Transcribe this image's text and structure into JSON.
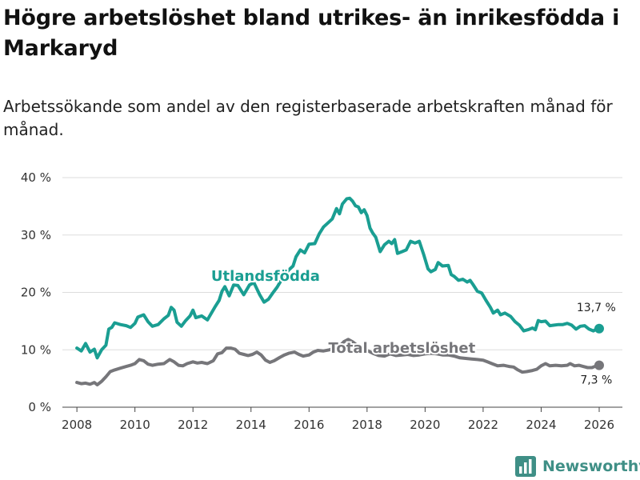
{
  "chart_data": {
    "type": "line",
    "title": "Högre arbetslöshet bland utrikes- än inrikesfödda i Markaryd",
    "subtitle": "Arbetssökande som andel av den registerbaserade arbetskraften månad för månad.",
    "xlabel": "",
    "ylabel": "",
    "xlim": [
      2007.5,
      2026.8
    ],
    "ylim": [
      0,
      40
    ],
    "x_ticks": [
      {
        "value": 2008,
        "label": "2008"
      },
      {
        "value": 2010,
        "label": "2010"
      },
      {
        "value": 2012,
        "label": "2012"
      },
      {
        "value": 2014,
        "label": "2014"
      },
      {
        "value": 2016,
        "label": "2016"
      },
      {
        "value": 2018,
        "label": "2018"
      },
      {
        "value": 2020,
        "label": "2020"
      },
      {
        "value": 2022,
        "label": "2022"
      },
      {
        "value": 2024,
        "label": "2024"
      },
      {
        "value": 2026,
        "label": "2026"
      }
    ],
    "y_ticks": [
      {
        "value": 0,
        "label": "0 %"
      },
      {
        "value": 10,
        "label": "10 %"
      },
      {
        "value": 20,
        "label": "20 %"
      },
      {
        "value": 30,
        "label": "30 %"
      },
      {
        "value": 40,
        "label": "40 %"
      }
    ],
    "series": [
      {
        "name": "Utlandsfödda",
        "label": "Utlandsfödda",
        "color": "#1a9e92",
        "end_label": "13,7 %",
        "points": [
          [
            2008.0,
            10.3
          ],
          [
            2008.15,
            9.8
          ],
          [
            2008.3,
            11.1
          ],
          [
            2008.45,
            9.6
          ],
          [
            2008.6,
            10.1
          ],
          [
            2008.7,
            8.6
          ],
          [
            2008.85,
            10.0
          ],
          [
            2009.0,
            10.8
          ],
          [
            2009.1,
            13.6
          ],
          [
            2009.2,
            13.9
          ],
          [
            2009.3,
            14.7
          ],
          [
            2009.5,
            14.4
          ],
          [
            2009.7,
            14.2
          ],
          [
            2009.85,
            13.9
          ],
          [
            2010.0,
            14.6
          ],
          [
            2010.1,
            15.7
          ],
          [
            2010.3,
            16.1
          ],
          [
            2010.45,
            14.9
          ],
          [
            2010.6,
            14.1
          ],
          [
            2010.8,
            14.4
          ],
          [
            2011.0,
            15.4
          ],
          [
            2011.15,
            16.0
          ],
          [
            2011.25,
            17.4
          ],
          [
            2011.35,
            16.9
          ],
          [
            2011.45,
            14.8
          ],
          [
            2011.6,
            14.1
          ],
          [
            2011.75,
            15.1
          ],
          [
            2011.9,
            15.9
          ],
          [
            2012.0,
            16.9
          ],
          [
            2012.1,
            15.6
          ],
          [
            2012.3,
            15.9
          ],
          [
            2012.5,
            15.2
          ],
          [
            2012.6,
            16.1
          ],
          [
            2012.75,
            17.4
          ],
          [
            2012.9,
            18.6
          ],
          [
            2013.0,
            20.2
          ],
          [
            2013.1,
            21.0
          ],
          [
            2013.25,
            19.4
          ],
          [
            2013.4,
            21.3
          ],
          [
            2013.55,
            21.2
          ],
          [
            2013.75,
            19.6
          ],
          [
            2013.95,
            21.3
          ],
          [
            2014.1,
            21.7
          ],
          [
            2014.3,
            19.6
          ],
          [
            2014.45,
            18.3
          ],
          [
            2014.6,
            18.8
          ],
          [
            2014.75,
            19.9
          ],
          [
            2014.9,
            20.9
          ],
          [
            2015.1,
            22.6
          ],
          [
            2015.3,
            23.9
          ],
          [
            2015.45,
            24.6
          ],
          [
            2015.55,
            26.2
          ],
          [
            2015.7,
            27.4
          ],
          [
            2015.85,
            26.9
          ],
          [
            2016.0,
            28.4
          ],
          [
            2016.2,
            28.5
          ],
          [
            2016.35,
            30.2
          ],
          [
            2016.5,
            31.4
          ],
          [
            2016.65,
            32.1
          ],
          [
            2016.8,
            32.8
          ],
          [
            2016.95,
            34.6
          ],
          [
            2017.05,
            33.7
          ],
          [
            2017.15,
            35.4
          ],
          [
            2017.3,
            36.3
          ],
          [
            2017.4,
            36.4
          ],
          [
            2017.5,
            35.9
          ],
          [
            2017.6,
            35.1
          ],
          [
            2017.7,
            34.9
          ],
          [
            2017.8,
            33.9
          ],
          [
            2017.9,
            34.4
          ],
          [
            2018.0,
            33.4
          ],
          [
            2018.1,
            31.2
          ],
          [
            2018.2,
            30.3
          ],
          [
            2018.3,
            29.6
          ],
          [
            2018.45,
            27.1
          ],
          [
            2018.6,
            28.3
          ],
          [
            2018.75,
            28.9
          ],
          [
            2018.85,
            28.5
          ],
          [
            2018.95,
            29.2
          ],
          [
            2019.05,
            26.8
          ],
          [
            2019.2,
            27.1
          ],
          [
            2019.35,
            27.4
          ],
          [
            2019.5,
            28.9
          ],
          [
            2019.65,
            28.6
          ],
          [
            2019.8,
            28.9
          ],
          [
            2019.95,
            26.6
          ],
          [
            2020.1,
            24.1
          ],
          [
            2020.2,
            23.6
          ],
          [
            2020.35,
            24.0
          ],
          [
            2020.45,
            25.2
          ],
          [
            2020.6,
            24.6
          ],
          [
            2020.8,
            24.7
          ],
          [
            2020.9,
            23.1
          ],
          [
            2021.0,
            22.8
          ],
          [
            2021.15,
            22.1
          ],
          [
            2021.3,
            22.3
          ],
          [
            2021.45,
            21.8
          ],
          [
            2021.55,
            22.1
          ],
          [
            2021.65,
            21.4
          ],
          [
            2021.8,
            20.2
          ],
          [
            2021.95,
            19.9
          ],
          [
            2022.1,
            18.6
          ],
          [
            2022.25,
            17.4
          ],
          [
            2022.35,
            16.4
          ],
          [
            2022.5,
            16.9
          ],
          [
            2022.6,
            16.1
          ],
          [
            2022.75,
            16.4
          ],
          [
            2022.95,
            15.8
          ],
          [
            2023.1,
            14.9
          ],
          [
            2023.25,
            14.3
          ],
          [
            2023.4,
            13.3
          ],
          [
            2023.55,
            13.5
          ],
          [
            2023.7,
            13.8
          ],
          [
            2023.8,
            13.5
          ],
          [
            2023.9,
            15.1
          ],
          [
            2024.0,
            14.9
          ],
          [
            2024.15,
            15.0
          ],
          [
            2024.3,
            14.2
          ],
          [
            2024.45,
            14.3
          ],
          [
            2024.6,
            14.4
          ],
          [
            2024.75,
            14.4
          ],
          [
            2024.9,
            14.6
          ],
          [
            2025.05,
            14.3
          ],
          [
            2025.2,
            13.6
          ],
          [
            2025.35,
            14.1
          ],
          [
            2025.5,
            14.2
          ],
          [
            2025.65,
            13.6
          ],
          [
            2025.8,
            13.3
          ],
          [
            2025.9,
            13.6
          ],
          [
            2026.0,
            13.7
          ]
        ]
      },
      {
        "name": "Total arbetslöshet",
        "label": "Total arbetslöshet",
        "color": "#76767a",
        "end_label": "7,3 %",
        "points": [
          [
            2008.0,
            4.3
          ],
          [
            2008.15,
            4.1
          ],
          [
            2008.3,
            4.2
          ],
          [
            2008.45,
            4.0
          ],
          [
            2008.6,
            4.3
          ],
          [
            2008.7,
            3.9
          ],
          [
            2008.85,
            4.5
          ],
          [
            2009.0,
            5.3
          ],
          [
            2009.15,
            6.2
          ],
          [
            2009.3,
            6.5
          ],
          [
            2009.5,
            6.8
          ],
          [
            2009.7,
            7.1
          ],
          [
            2009.85,
            7.3
          ],
          [
            2010.0,
            7.6
          ],
          [
            2010.15,
            8.3
          ],
          [
            2010.3,
            8.1
          ],
          [
            2010.45,
            7.5
          ],
          [
            2010.6,
            7.3
          ],
          [
            2010.8,
            7.5
          ],
          [
            2011.0,
            7.6
          ],
          [
            2011.2,
            8.3
          ],
          [
            2011.35,
            7.9
          ],
          [
            2011.5,
            7.3
          ],
          [
            2011.65,
            7.2
          ],
          [
            2011.8,
            7.6
          ],
          [
            2012.0,
            7.9
          ],
          [
            2012.15,
            7.7
          ],
          [
            2012.3,
            7.8
          ],
          [
            2012.5,
            7.6
          ],
          [
            2012.7,
            8.1
          ],
          [
            2012.85,
            9.3
          ],
          [
            2013.0,
            9.5
          ],
          [
            2013.15,
            10.3
          ],
          [
            2013.3,
            10.3
          ],
          [
            2013.45,
            10.1
          ],
          [
            2013.6,
            9.4
          ],
          [
            2013.75,
            9.2
          ],
          [
            2013.9,
            9.0
          ],
          [
            2014.05,
            9.2
          ],
          [
            2014.2,
            9.6
          ],
          [
            2014.35,
            9.1
          ],
          [
            2014.5,
            8.2
          ],
          [
            2014.65,
            7.8
          ],
          [
            2014.8,
            8.1
          ],
          [
            2015.0,
            8.7
          ],
          [
            2015.15,
            9.1
          ],
          [
            2015.3,
            9.4
          ],
          [
            2015.5,
            9.6
          ],
          [
            2015.65,
            9.2
          ],
          [
            2015.8,
            8.9
          ],
          [
            2016.0,
            9.1
          ],
          [
            2016.15,
            9.6
          ],
          [
            2016.3,
            9.9
          ],
          [
            2016.5,
            9.8
          ],
          [
            2016.7,
            10.0
          ],
          [
            2016.9,
            10.4
          ],
          [
            2017.05,
            10.6
          ],
          [
            2017.2,
            11.4
          ],
          [
            2017.35,
            11.8
          ],
          [
            2017.5,
            11.4
          ],
          [
            2017.65,
            10.8
          ],
          [
            2017.8,
            10.3
          ],
          [
            2018.0,
            9.9
          ],
          [
            2018.2,
            9.4
          ],
          [
            2018.4,
            9.0
          ],
          [
            2018.6,
            8.9
          ],
          [
            2018.8,
            9.3
          ],
          [
            2019.0,
            9.0
          ],
          [
            2019.2,
            9.1
          ],
          [
            2019.4,
            9.2
          ],
          [
            2019.6,
            9.0
          ],
          [
            2019.8,
            9.1
          ],
          [
            2020.0,
            9.3
          ],
          [
            2020.2,
            9.4
          ],
          [
            2020.4,
            9.3
          ],
          [
            2020.6,
            9.1
          ],
          [
            2020.8,
            9.1
          ],
          [
            2021.0,
            8.9
          ],
          [
            2021.2,
            8.6
          ],
          [
            2021.4,
            8.5
          ],
          [
            2021.6,
            8.4
          ],
          [
            2021.8,
            8.3
          ],
          [
            2022.0,
            8.2
          ],
          [
            2022.15,
            7.9
          ],
          [
            2022.3,
            7.6
          ],
          [
            2022.5,
            7.2
          ],
          [
            2022.7,
            7.3
          ],
          [
            2022.9,
            7.1
          ],
          [
            2023.05,
            7.0
          ],
          [
            2023.2,
            6.5
          ],
          [
            2023.35,
            6.1
          ],
          [
            2023.5,
            6.2
          ],
          [
            2023.7,
            6.4
          ],
          [
            2023.85,
            6.6
          ],
          [
            2024.0,
            7.2
          ],
          [
            2024.15,
            7.6
          ],
          [
            2024.3,
            7.2
          ],
          [
            2024.5,
            7.3
          ],
          [
            2024.7,
            7.2
          ],
          [
            2024.9,
            7.3
          ],
          [
            2025.0,
            7.6
          ],
          [
            2025.15,
            7.2
          ],
          [
            2025.3,
            7.3
          ],
          [
            2025.45,
            7.1
          ],
          [
            2025.6,
            6.9
          ],
          [
            2025.75,
            6.9
          ],
          [
            2025.9,
            7.2
          ],
          [
            2026.0,
            7.3
          ]
        ]
      }
    ]
  },
  "brand": {
    "name": "Newsworthy",
    "icon": "bar-chart-logo-icon",
    "color": "#3f8f86"
  }
}
